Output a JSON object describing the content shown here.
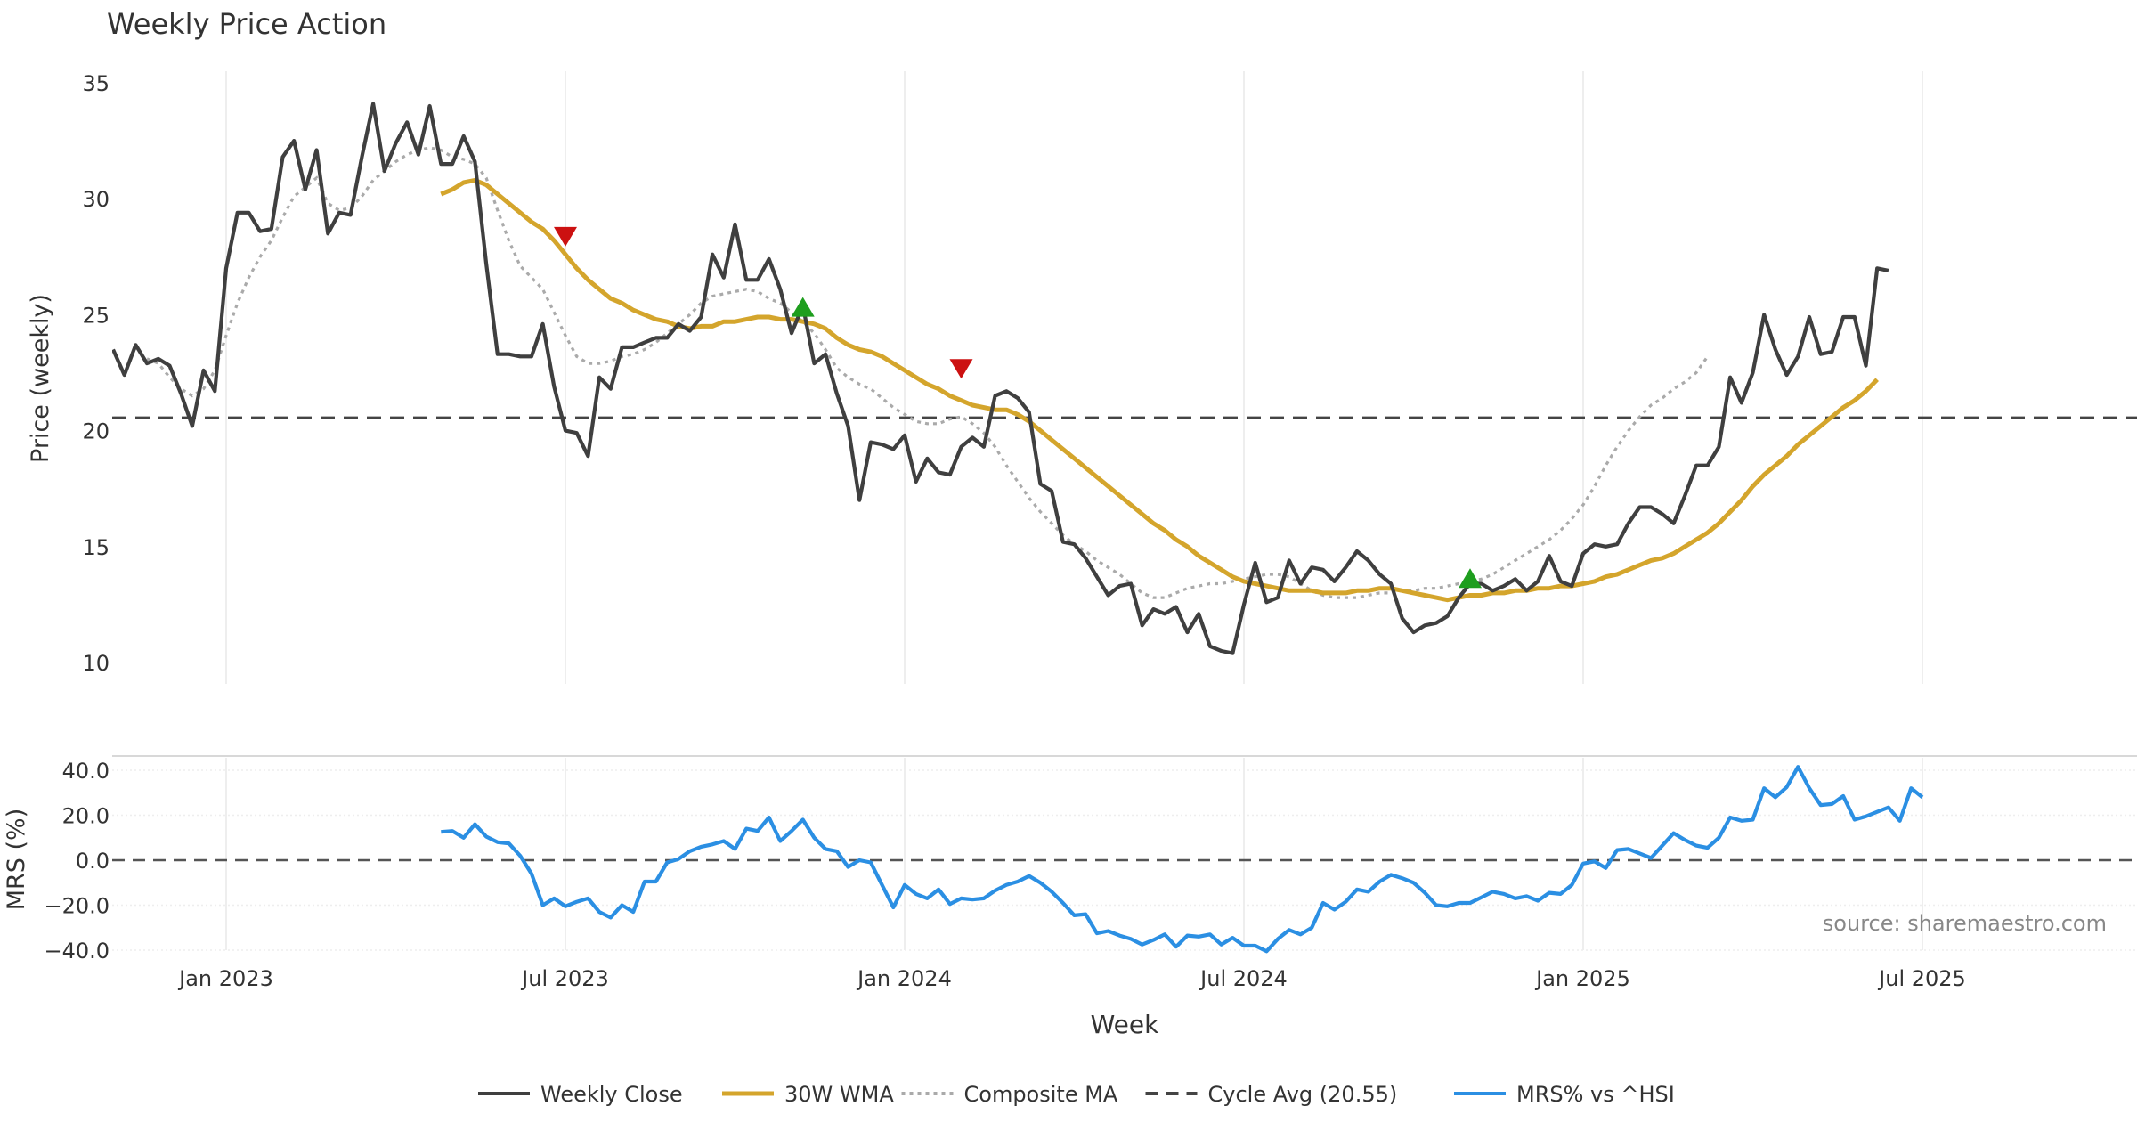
{
  "title": "Weekly Price Action",
  "source": "source: sharemaestro.com",
  "colors": {
    "close": "#3f3f3f",
    "wma": "#d4a52c",
    "composite": "#aaaaaa",
    "cycle": "#444444",
    "mrs": "#2b8fe3",
    "up": "#1e9e1e",
    "down": "#cc1111",
    "grid": "#e8e8e8"
  },
  "chart_data": [
    {
      "type": "line",
      "panel": "price",
      "ylabel": "Price (weekly)",
      "xlabel": "Week",
      "ylim": [
        9,
        36
      ],
      "yticks": [
        10,
        15,
        20,
        25,
        30,
        35
      ],
      "x_start_week_index": 0,
      "x_tick_labels": [
        {
          "label": "Jan 2023",
          "week": 10
        },
        {
          "label": "Jul 2023",
          "week": 40
        },
        {
          "label": "Jan 2024",
          "week": 70
        },
        {
          "label": "Jul 2024",
          "week": 100
        },
        {
          "label": "Jan 2025",
          "week": 130
        },
        {
          "label": "Jul 2025",
          "week": 160
        }
      ],
      "x_range_weeks": [
        0,
        181
      ],
      "cycle_avg": 20.55,
      "series": [
        {
          "name": "Weekly Close",
          "start": 0,
          "values": [
            23.5,
            22.4,
            23.7,
            22.9,
            23.1,
            22.8,
            21.6,
            20.2,
            22.6,
            21.7,
            27.0,
            29.4,
            29.4,
            28.6,
            28.7,
            31.8,
            32.5,
            30.4,
            32.1,
            28.5,
            29.4,
            29.3,
            31.8,
            34.1,
            31.2,
            32.4,
            33.3,
            31.9,
            34.0,
            31.5,
            31.5,
            32.7,
            31.6,
            27.2,
            23.3,
            23.3,
            23.2,
            23.2,
            24.6,
            21.9,
            20.0,
            19.9,
            18.9,
            22.3,
            21.8,
            23.6,
            23.6,
            23.8,
            24.0,
            24.0,
            24.6,
            24.3,
            24.9,
            27.6,
            26.6,
            28.9,
            26.5,
            26.5,
            27.4,
            26.1,
            24.2,
            25.4,
            22.9,
            23.3,
            21.6,
            20.2,
            17.0,
            19.5,
            19.4,
            19.2,
            19.8,
            17.8,
            18.8,
            18.2,
            18.1,
            19.3,
            19.7,
            19.3,
            21.5,
            21.7,
            21.4,
            20.8,
            17.7,
            17.4,
            15.2,
            15.1,
            14.5,
            13.7,
            12.9,
            13.3,
            13.4,
            11.6,
            12.3,
            12.1,
            12.4,
            11.3,
            12.1,
            10.7,
            10.5,
            10.4,
            12.5,
            14.3,
            12.6,
            12.8,
            14.4,
            13.4,
            14.1,
            14.0,
            13.5,
            14.1,
            14.8,
            14.4,
            13.8,
            13.4,
            11.9,
            11.3,
            11.6,
            11.7,
            12.0,
            12.8,
            13.4,
            13.4,
            13.1,
            13.3,
            13.6,
            13.1,
            13.5,
            14.6,
            13.5,
            13.3,
            14.7,
            15.1,
            15.0,
            15.1,
            16.0,
            16.7,
            16.7,
            16.4,
            16.0,
            17.2,
            18.5,
            18.5,
            19.3,
            22.3,
            21.2,
            22.5,
            25.0,
            23.5,
            22.4,
            23.2,
            24.9,
            23.3,
            23.4,
            24.9,
            24.9,
            22.8,
            27.0,
            26.9
          ]
        },
        {
          "name": "30W WMA",
          "start": 29,
          "values": [
            30.2,
            30.4,
            30.7,
            30.8,
            30.6,
            30.2,
            29.8,
            29.4,
            29.0,
            28.7,
            28.2,
            27.6,
            27.0,
            26.5,
            26.1,
            25.7,
            25.5,
            25.2,
            25.0,
            24.8,
            24.7,
            24.5,
            24.4,
            24.5,
            24.5,
            24.7,
            24.7,
            24.8,
            24.9,
            24.9,
            24.8,
            24.8,
            24.7,
            24.6,
            24.4,
            24.0,
            23.7,
            23.5,
            23.4,
            23.2,
            22.9,
            22.6,
            22.3,
            22.0,
            21.8,
            21.5,
            21.3,
            21.1,
            21.0,
            20.9,
            20.9,
            20.7,
            20.4,
            20.0,
            19.6,
            19.2,
            18.8,
            18.4,
            18.0,
            17.6,
            17.2,
            16.8,
            16.4,
            16.0,
            15.7,
            15.3,
            15.0,
            14.6,
            14.3,
            14.0,
            13.7,
            13.5,
            13.4,
            13.3,
            13.2,
            13.1,
            13.1,
            13.1,
            13.0,
            13.0,
            13.0,
            13.1,
            13.1,
            13.2,
            13.2,
            13.1,
            13.0,
            12.9,
            12.8,
            12.7,
            12.8,
            12.9,
            12.9,
            13.0,
            13.0,
            13.1,
            13.1,
            13.2,
            13.2,
            13.3,
            13.3,
            13.4,
            13.5,
            13.7,
            13.8,
            14.0,
            14.2,
            14.4,
            14.5,
            14.7,
            15.0,
            15.3,
            15.6,
            16.0,
            16.5,
            17.0,
            17.6,
            18.1,
            18.5,
            18.9,
            19.4,
            19.8,
            20.2,
            20.6,
            21.0,
            21.3,
            21.7,
            22.2
          ]
        },
        {
          "name": "Composite MA",
          "start": 3,
          "values": [
            23.1,
            22.9,
            22.3,
            21.8,
            21.5,
            21.8,
            22.6,
            24.1,
            25.5,
            26.6,
            27.5,
            28.2,
            29.2,
            30.1,
            30.5,
            30.9,
            29.8,
            29.5,
            29.6,
            30.1,
            30.8,
            31.2,
            31.6,
            31.9,
            32.1,
            32.2,
            32.1,
            31.8,
            31.7,
            31.5,
            30.9,
            29.5,
            28.2,
            27.1,
            26.6,
            26.1,
            25.1,
            24.1,
            23.2,
            22.9,
            22.9,
            23.0,
            23.2,
            23.3,
            23.5,
            23.8,
            24.2,
            24.6,
            25.0,
            25.5,
            25.8,
            25.9,
            26.0,
            26.1,
            26.0,
            25.7,
            25.5,
            25.1,
            24.7,
            24.2,
            23.5,
            22.7,
            22.3,
            22.0,
            21.8,
            21.4,
            21.0,
            20.7,
            20.4,
            20.3,
            20.3,
            20.5,
            20.6,
            20.3,
            19.9,
            19.3,
            18.5,
            17.8,
            17.1,
            16.5,
            16.0,
            15.5,
            15.1,
            14.8,
            14.4,
            14.1,
            13.8,
            13.4,
            13.0,
            12.8,
            12.8,
            13.0,
            13.2,
            13.3,
            13.4,
            13.4,
            13.5,
            13.6,
            13.7,
            13.8,
            13.8,
            13.7,
            13.4,
            13.1,
            12.9,
            12.8,
            12.8,
            12.8,
            12.9,
            13.0,
            13.0,
            13.1,
            13.1,
            13.2,
            13.2,
            13.3,
            13.4,
            13.5,
            13.6,
            13.8,
            14.1,
            14.4,
            14.7,
            15.0,
            15.3,
            15.7,
            16.2,
            16.8,
            17.6,
            18.5,
            19.3,
            20.0,
            20.6,
            21.1,
            21.4,
            21.8,
            22.1,
            22.5,
            23.2
          ]
        }
      ],
      "markers": [
        {
          "kind": "sell",
          "week": 40,
          "value": 28.4
        },
        {
          "kind": "buy",
          "week": 61,
          "value": 25.3
        },
        {
          "kind": "sell",
          "week": 75,
          "value": 22.7
        },
        {
          "kind": "buy",
          "week": 120,
          "value": 13.6
        }
      ]
    },
    {
      "type": "line",
      "panel": "mrs",
      "ylabel": "MRS (%)",
      "ylim": [
        -42,
        45
      ],
      "yticks": [
        40.0,
        20.0,
        0.0,
        -20.0,
        -40.0
      ],
      "ytick_labels": [
        "40.0",
        "20.0",
        "0.0",
        "−20.0",
        "−40.0"
      ],
      "zero_line": 0,
      "series": [
        {
          "name": "MRS% vs ^HSI",
          "start": 29,
          "values": [
            12.6,
            13.0,
            10.0,
            16.0,
            10.5,
            8.0,
            7.5,
            2.0,
            -6.0,
            -20.0,
            -17.0,
            -20.5,
            -18.5,
            -17.0,
            -23.0,
            -25.5,
            -20.0,
            -23.0,
            -9.5,
            -9.5,
            -1.0,
            0.5,
            4.0,
            6.0,
            7.0,
            8.5,
            5.0,
            14.0,
            13.0,
            19.0,
            8.5,
            13.0,
            18.0,
            10.0,
            5.0,
            4.0,
            -3.0,
            0.0,
            -1.0,
            -11.0,
            -21.0,
            -11.0,
            -15.0,
            -17.0,
            -13.0,
            -19.5,
            -17.0,
            -17.5,
            -17.0,
            -13.5,
            -11.0,
            -9.5,
            -7.0,
            -10.0,
            -14.0,
            -19.0,
            -24.5,
            -24.0,
            -32.5,
            -31.5,
            -33.5,
            -35.0,
            -37.5,
            -35.5,
            -33.0,
            -38.5,
            -33.5,
            -34.0,
            -33.0,
            -37.5,
            -34.5,
            -38.0,
            -38.0,
            -40.5,
            -35.0,
            -31.0,
            -33.0,
            -30.0,
            -19.0,
            -22.0,
            -18.5,
            -13.0,
            -14.0,
            -9.5,
            -6.5,
            -8.0,
            -10.0,
            -14.5,
            -20.0,
            -20.5,
            -19.0,
            -19.0,
            -16.5,
            -14.0,
            -15.0,
            -17.0,
            -16.0,
            -18.0,
            -14.5,
            -15.0,
            -11.0,
            -1.5,
            -0.5,
            -3.5,
            4.5,
            5.0,
            3.0,
            1.0,
            6.5,
            12.0,
            9.0,
            6.5,
            5.5,
            10.0,
            19.0,
            17.5,
            18.0,
            32.0,
            28.0,
            32.5,
            41.5,
            32.0,
            24.5,
            25.0,
            28.5,
            18.0,
            19.5,
            21.5,
            23.5,
            17.5,
            32.0,
            28.0
          ]
        }
      ]
    }
  ],
  "legend": [
    {
      "label": "Weekly Close",
      "style": "solid",
      "color": "#3f3f3f"
    },
    {
      "label": "30W WMA",
      "style": "solid",
      "color": "#d4a52c"
    },
    {
      "label": "Composite MA",
      "style": "dotted",
      "color": "#aaaaaa"
    },
    {
      "label": "Cycle Avg (20.55)",
      "style": "dashed",
      "color": "#444444"
    },
    {
      "label": "MRS% vs ^HSI",
      "style": "solid",
      "color": "#2b8fe3"
    }
  ]
}
